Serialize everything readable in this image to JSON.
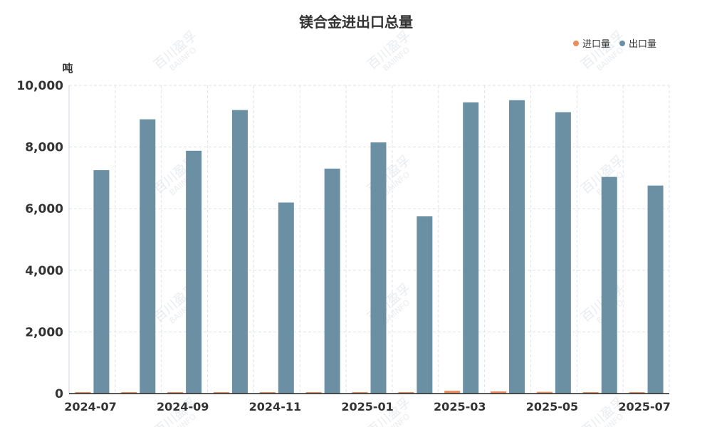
{
  "chart_data": {
    "type": "bar",
    "title": "镁合金进出口总量",
    "ylabel": "吨",
    "ylim": [
      0,
      10000
    ],
    "yticks": [
      "0",
      "2,000",
      "4,000",
      "6,000",
      "8,000",
      "10,000"
    ],
    "ytick_values": [
      0,
      2000,
      4000,
      6000,
      8000,
      10000
    ],
    "categories": [
      "2024-07",
      "2024-08",
      "2024-09",
      "2024-10",
      "2024-11",
      "2024-12",
      "2025-01",
      "2025-02",
      "2025-03",
      "2025-04",
      "2025-05",
      "2025-06",
      "2025-07"
    ],
    "xtick_labels": [
      "2024-07",
      "2024-09",
      "2024-11",
      "2025-01",
      "2025-03",
      "2025-05",
      "2025-07"
    ],
    "legend_position": "top-right",
    "series": [
      {
        "name": "进口量",
        "color": "#ec8c5c",
        "values": [
          30,
          40,
          25,
          45,
          35,
          30,
          35,
          40,
          90,
          70,
          55,
          20,
          15
        ]
      },
      {
        "name": "出口量",
        "color": "#6b90a3",
        "values": [
          7250,
          8900,
          7880,
          9200,
          6200,
          7300,
          8150,
          5750,
          9450,
          9520,
          9130,
          7030,
          6750
        ]
      }
    ],
    "watermark": {
      "cn": "百川盈孚",
      "en": "BAIINFO"
    }
  }
}
